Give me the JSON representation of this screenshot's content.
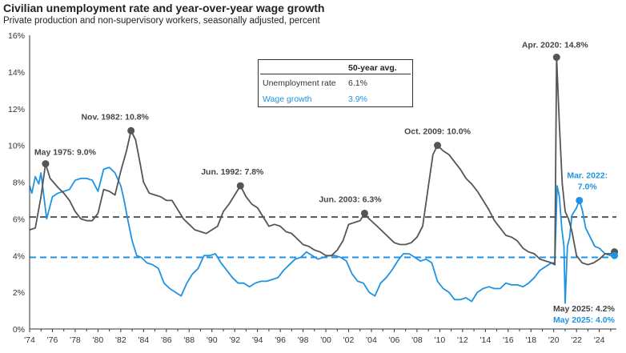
{
  "title": "Civilian unemployment rate and year-over-year wage growth",
  "subtitle": "Private production and non-supervisory workers, seasonally adjusted, percent",
  "colors": {
    "unemployment": "#555555",
    "wage": "#1f93e3",
    "axis": "#333333"
  },
  "legend": {
    "header": "50-year avg.",
    "rows": [
      {
        "label": "Unemployment rate",
        "value": "6.1%"
      },
      {
        "label": "Wage growth",
        "value": "3.9%"
      }
    ]
  },
  "chart_data": {
    "type": "line",
    "title": "Civilian unemployment rate and year-over-year wage growth",
    "xlim": [
      1974,
      2025.5
    ],
    "ylim": [
      0,
      16
    ],
    "y_ticks": [
      0,
      2,
      4,
      6,
      8,
      10,
      12,
      14,
      16
    ],
    "y_tick_labels": [
      "0%",
      "2%",
      "4%",
      "6%",
      "8%",
      "10%",
      "12%",
      "14%",
      "16%"
    ],
    "x_ticks": [
      1974,
      1976,
      1978,
      1980,
      1982,
      1984,
      1986,
      1988,
      1990,
      1992,
      1994,
      1996,
      1998,
      2000,
      2002,
      2004,
      2006,
      2008,
      2010,
      2012,
      2014,
      2016,
      2018,
      2020,
      2022,
      2024
    ],
    "x_tick_labels": [
      "'74",
      "'76",
      "'78",
      "'80",
      "'82",
      "'84",
      "'86",
      "'88",
      "'90",
      "'92",
      "'94",
      "'96",
      "'98",
      "'00",
      "'02",
      "'04",
      "'06",
      "'08",
      "'10",
      "'12",
      "'14",
      "'16",
      "'18",
      "'20",
      "'22",
      "'24"
    ],
    "series": [
      {
        "name": "Unemployment rate",
        "avg": 6.1,
        "x": [
          1974.0,
          1974.5,
          1975.0,
          1975.4,
          1975.8,
          1976.5,
          1977.0,
          1977.5,
          1978.0,
          1978.5,
          1979.0,
          1979.5,
          1980.0,
          1980.5,
          1981.0,
          1981.5,
          1982.0,
          1982.5,
          1982.9,
          1983.3,
          1983.7,
          1984.0,
          1984.5,
          1985.0,
          1985.5,
          1986.0,
          1986.5,
          1987.0,
          1987.5,
          1988.0,
          1988.5,
          1989.0,
          1989.5,
          1990.0,
          1990.5,
          1991.0,
          1991.5,
          1992.0,
          1992.5,
          1993.0,
          1993.5,
          1994.0,
          1994.5,
          1995.0,
          1995.5,
          1996.0,
          1996.5,
          1997.0,
          1997.5,
          1998.0,
          1998.5,
          1999.0,
          1999.5,
          2000.0,
          2000.5,
          2001.0,
          2001.5,
          2002.0,
          2002.5,
          2003.0,
          2003.4,
          2003.8,
          2004.5,
          2005.0,
          2005.5,
          2006.0,
          2006.5,
          2007.0,
          2007.5,
          2008.0,
          2008.5,
          2009.0,
          2009.4,
          2009.8,
          2010.3,
          2010.8,
          2011.3,
          2011.8,
          2012.3,
          2012.8,
          2013.3,
          2013.8,
          2014.3,
          2014.8,
          2015.3,
          2015.8,
          2016.3,
          2016.8,
          2017.3,
          2017.8,
          2018.3,
          2018.8,
          2019.3,
          2019.8,
          2020.1,
          2020.25,
          2020.5,
          2020.75,
          2021.0,
          2021.3,
          2021.6,
          2022.0,
          2022.5,
          2023.0,
          2023.5,
          2024.0,
          2024.5,
          2025.0,
          2025.33
        ],
        "values": [
          5.4,
          5.5,
          7.2,
          9.0,
          8.2,
          7.7,
          7.4,
          7.0,
          6.4,
          6.0,
          5.9,
          5.9,
          6.3,
          7.6,
          7.5,
          7.3,
          8.6,
          9.7,
          10.8,
          10.3,
          9.0,
          8.0,
          7.4,
          7.3,
          7.2,
          7.0,
          7.0,
          6.5,
          6.0,
          5.7,
          5.4,
          5.3,
          5.2,
          5.4,
          5.6,
          6.4,
          6.8,
          7.3,
          7.8,
          7.2,
          6.8,
          6.6,
          6.1,
          5.6,
          5.7,
          5.6,
          5.3,
          5.2,
          4.9,
          4.6,
          4.5,
          4.3,
          4.2,
          4.0,
          4.0,
          4.3,
          4.8,
          5.7,
          5.8,
          5.9,
          6.3,
          6.0,
          5.6,
          5.3,
          5.0,
          4.7,
          4.6,
          4.6,
          4.7,
          5.0,
          5.6,
          7.8,
          9.5,
          10.0,
          9.7,
          9.5,
          9.1,
          8.7,
          8.2,
          7.9,
          7.5,
          7.0,
          6.5,
          5.9,
          5.5,
          5.1,
          5.0,
          4.8,
          4.4,
          4.2,
          4.1,
          3.8,
          3.7,
          3.6,
          3.5,
          14.8,
          11.1,
          7.9,
          6.4,
          6.0,
          5.3,
          4.0,
          3.6,
          3.5,
          3.6,
          3.8,
          4.1,
          4.1,
          4.2
        ]
      },
      {
        "name": "Wage growth",
        "avg": 3.9,
        "x": [
          1974.0,
          1974.2,
          1974.5,
          1974.8,
          1975.0,
          1975.5,
          1976.0,
          1976.5,
          1977.0,
          1977.5,
          1978.0,
          1978.5,
          1979.0,
          1979.5,
          1980.0,
          1980.5,
          1981.0,
          1981.5,
          1982.0,
          1982.3,
          1982.6,
          1983.0,
          1983.4,
          1983.8,
          1984.3,
          1984.8,
          1985.3,
          1985.8,
          1986.3,
          1986.8,
          1987.3,
          1987.8,
          1988.3,
          1988.8,
          1989.3,
          1989.8,
          1990.3,
          1990.8,
          1991.3,
          1991.8,
          1992.3,
          1992.8,
          1993.3,
          1993.8,
          1994.3,
          1994.8,
          1995.3,
          1995.8,
          1996.3,
          1996.8,
          1997.3,
          1997.8,
          1998.3,
          1998.8,
          1999.3,
          1999.8,
          2000.3,
          2000.8,
          2001.3,
          2001.8,
          2002.3,
          2002.8,
          2003.3,
          2003.8,
          2004.3,
          2004.8,
          2005.3,
          2005.8,
          2006.3,
          2006.8,
          2007.3,
          2007.8,
          2008.3,
          2008.8,
          2009.3,
          2009.8,
          2010.3,
          2010.8,
          2011.3,
          2011.8,
          2012.3,
          2012.8,
          2013.3,
          2013.8,
          2014.3,
          2014.8,
          2015.3,
          2015.8,
          2016.3,
          2016.8,
          2017.3,
          2017.8,
          2018.3,
          2018.8,
          2019.3,
          2019.8,
          2020.1,
          2020.3,
          2020.5,
          2020.7,
          2020.9,
          2021.0,
          2021.2,
          2021.4,
          2021.6,
          2021.8,
          2022.0,
          2022.25,
          2022.5,
          2022.8,
          2023.2,
          2023.6,
          2024.0,
          2024.5,
          2025.0,
          2025.33
        ],
        "values": [
          7.8,
          7.4,
          8.3,
          7.9,
          8.5,
          6.0,
          7.2,
          7.4,
          7.5,
          7.6,
          8.1,
          8.2,
          8.2,
          8.1,
          7.5,
          8.7,
          8.8,
          8.5,
          7.8,
          7.0,
          6.0,
          4.8,
          4.0,
          3.9,
          3.6,
          3.5,
          3.3,
          2.5,
          2.2,
          2.0,
          1.8,
          2.5,
          3.0,
          3.3,
          4.0,
          4.0,
          4.1,
          3.6,
          3.2,
          2.8,
          2.5,
          2.5,
          2.3,
          2.5,
          2.6,
          2.6,
          2.7,
          2.8,
          3.2,
          3.5,
          3.8,
          3.9,
          4.2,
          4.0,
          3.8,
          3.9,
          4.0,
          4.0,
          3.9,
          3.7,
          3.0,
          2.6,
          2.5,
          2.0,
          1.8,
          2.5,
          2.8,
          3.2,
          3.7,
          4.1,
          4.1,
          3.9,
          3.7,
          3.8,
          3.6,
          2.6,
          2.2,
          2.0,
          1.6,
          1.6,
          1.7,
          1.5,
          2.0,
          2.2,
          2.3,
          2.2,
          2.2,
          2.5,
          2.4,
          2.4,
          2.3,
          2.5,
          2.8,
          3.2,
          3.4,
          3.6,
          3.6,
          7.8,
          7.2,
          5.5,
          4.5,
          1.4,
          4.5,
          5.0,
          6.2,
          6.4,
          6.6,
          7.0,
          6.5,
          5.5,
          5.0,
          4.5,
          4.4,
          4.1,
          4.0,
          4.0
        ]
      }
    ],
    "annotations": [
      {
        "text": "May 1975: 9.0%",
        "x": 1975.4,
        "y": 9.0,
        "series": "Unemployment rate"
      },
      {
        "text": "Nov. 1982: 10.8%",
        "x": 1982.9,
        "y": 10.8,
        "series": "Unemployment rate"
      },
      {
        "text": "Jun. 1992: 7.8%",
        "x": 1992.5,
        "y": 7.8,
        "series": "Unemployment rate"
      },
      {
        "text": "Jun. 2003: 6.3%",
        "x": 2003.4,
        "y": 6.3,
        "series": "Unemployment rate"
      },
      {
        "text": "Oct. 2009: 10.0%",
        "x": 2009.8,
        "y": 10.0,
        "series": "Unemployment rate"
      },
      {
        "text": "Apr. 2020: 14.8%",
        "x": 2020.25,
        "y": 14.8,
        "series": "Unemployment rate"
      },
      {
        "text": "Mar. 2022:",
        "x": 2022.25,
        "y": 7.0,
        "series": "Wage growth",
        "line2": "7.0%"
      },
      {
        "text": "May 2025: 4.2%",
        "x": 2025.33,
        "y": 4.2,
        "series": "Unemployment rate"
      },
      {
        "text": "May 2025: 4.0%",
        "x": 2025.33,
        "y": 4.0,
        "series": "Wage growth"
      }
    ]
  }
}
